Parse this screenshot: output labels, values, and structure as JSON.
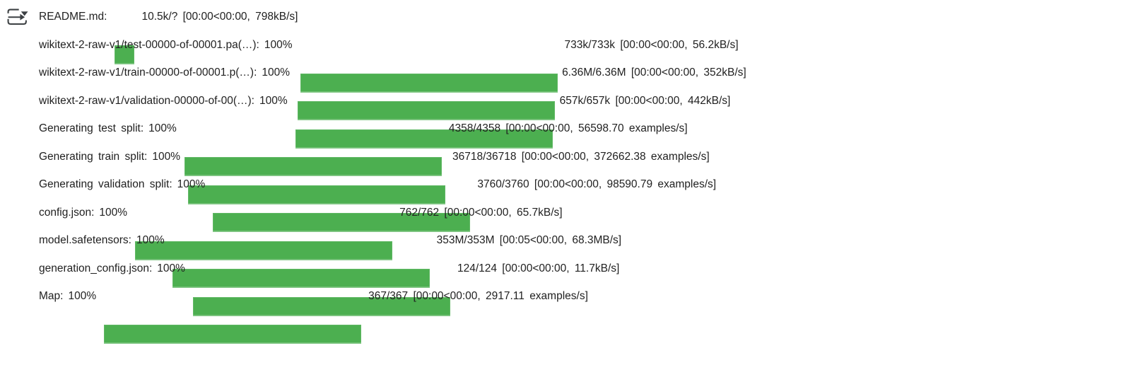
{
  "colors": {
    "bar_fill": "#4caf50",
    "text": "#212121",
    "icon": "#3c4043",
    "background": "#ffffff"
  },
  "gutter_icon": {
    "name": "cell-output-toggle-icon"
  },
  "progress_rows": [
    {
      "label": "README.md:",
      "percent": "",
      "progress": 100,
      "bar": "compact",
      "stats": "10.5k/? [00:00<00:00, 798kB/s]"
    },
    {
      "label": "wikitext-2-raw-v1/test-00000-of-00001.pa(…):",
      "percent": "100%",
      "progress": 100,
      "bar": "normal",
      "stats": "733k/733k [00:00<00:00, 56.2kB/s]"
    },
    {
      "label": "wikitext-2-raw-v1/train-00000-of-00001.p(…):",
      "percent": "100%",
      "progress": 100,
      "bar": "normal",
      "stats": "6.36M/6.36M [00:00<00:00, 352kB/s]"
    },
    {
      "label": "wikitext-2-raw-v1/validation-00000-of-00(…):",
      "percent": "100%",
      "progress": 100,
      "bar": "normal",
      "stats": "657k/657k [00:00<00:00, 442kB/s]"
    },
    {
      "label": "Generating test split:",
      "percent": "100%",
      "progress": 100,
      "bar": "normal",
      "stats": "4358/4358 [00:00<00:00, 56598.70 examples/s]"
    },
    {
      "label": "Generating train split:",
      "percent": "100%",
      "progress": 100,
      "bar": "normal",
      "stats": "36718/36718 [00:00<00:00, 372662.38 examples/s]"
    },
    {
      "label": "Generating validation split:",
      "percent": "100%",
      "progress": 100,
      "bar": "normal",
      "stats": "3760/3760 [00:00<00:00, 98590.79 examples/s]"
    },
    {
      "label": "config.json:",
      "percent": "100%",
      "progress": 100,
      "bar": "normal",
      "stats": "762/762 [00:00<00:00, 65.7kB/s]"
    },
    {
      "label": "model.safetensors:",
      "percent": "100%",
      "progress": 100,
      "bar": "normal",
      "stats": "353M/353M [00:05<00:00, 68.3MB/s]"
    },
    {
      "label": "generation_config.json:",
      "percent": "100%",
      "progress": 100,
      "bar": "normal",
      "stats": "124/124 [00:00<00:00, 11.7kB/s]"
    },
    {
      "label": "Map:",
      "percent": "100%",
      "progress": 100,
      "bar": "normal",
      "stats": "367/367 [00:00<00:00, 2917.11 examples/s]"
    }
  ]
}
